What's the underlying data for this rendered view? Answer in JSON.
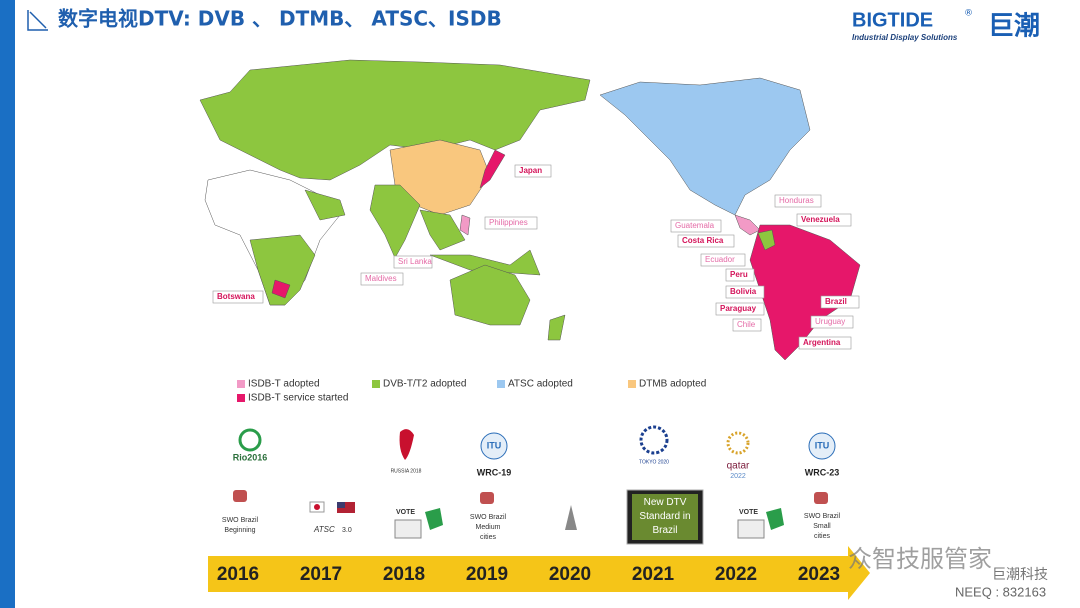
{
  "header": {
    "title": "数字电视DTV: DVB 、 DTMB、 ATSC、ISDB",
    "logo": "BIGTIDE",
    "logo_mark": "®",
    "logo_tagline": "Industrial Display Solutions",
    "logo_cn": "巨潮"
  },
  "map": {
    "isdb_adopted": [
      "Philippines",
      "Sri Lanka",
      "Maldives",
      "Honduras",
      "Guatemala",
      "Ecuador",
      "Chile",
      "Uruguay"
    ],
    "isdb_service_started": [
      "Japan",
      "Botswana",
      "Venezuela",
      "Costa Rica",
      "Peru",
      "Bolivia",
      "Paraguay",
      "Brazil",
      "Argentina"
    ]
  },
  "legend": [
    {
      "label": "ISDB-T adopted",
      "color": "#f29ac6"
    },
    {
      "label": "ISDB-T service started",
      "color": "#e6176a"
    },
    {
      "label": "DVB-T/T2 adopted",
      "color": "#8dc63f"
    },
    {
      "label": "ATSC adopted",
      "color": "#9cc8f0"
    },
    {
      "label": "DTMB adopted",
      "color": "#f9c77e"
    }
  ],
  "timeline": {
    "years": [
      "2016",
      "2017",
      "2018",
      "2019",
      "2020",
      "2021",
      "2022",
      "2023"
    ],
    "logos": {
      "rio": "Rio2016",
      "russia": "RUSSIA 2018",
      "itu19": "ITU",
      "wrc19": "WRC-19",
      "tokyo": "TOKYO 2020",
      "qatar": "qatar",
      "qatar_year": "2022",
      "itu23": "ITU",
      "wrc23": "WRC-23",
      "atsc": "ATSC",
      "atsc_ver": "3.0",
      "vote1": "VOTE",
      "vote2": "VOTE",
      "screen": "New DTV Standard in Brazil"
    },
    "events": [
      [
        "SWO Brazil",
        "Beginning"
      ],
      [
        "SWO Brazil",
        "Medium",
        "cities"
      ],
      [
        "SWO Brazil",
        "Small",
        "cities"
      ]
    ]
  },
  "footer": {
    "watermark": "众智技服管家",
    "company": "巨潮科技",
    "code": "NEEQ : 832163"
  }
}
